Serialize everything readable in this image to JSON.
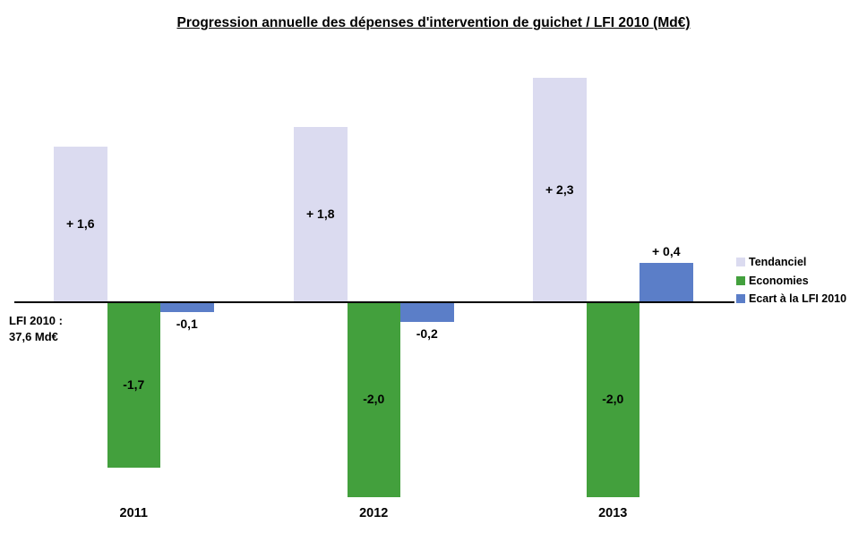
{
  "chart_data": {
    "type": "bar",
    "title": "Progression annuelle des dépenses d'intervention de guichet / LFI 2010 (Md€)",
    "unit": "Md€",
    "categories": [
      "2011",
      "2012",
      "2013"
    ],
    "series": [
      {
        "name": "Tendanciel",
        "color": "#dbdbf0",
        "values": [
          1.6,
          1.8,
          2.3
        ],
        "labels": [
          "+ 1,6",
          "+ 1,8",
          "+ 2,3"
        ]
      },
      {
        "name": "Economies",
        "color": "#43a03d",
        "values": [
          -1.7,
          -2.0,
          -2.0
        ],
        "labels": [
          "-1,7",
          "-2,0",
          "-2,0"
        ]
      },
      {
        "name": "Ecart à la LFI 2010",
        "color": "#5b7ec8",
        "values": [
          -0.1,
          -0.2,
          0.4
        ],
        "labels": [
          "-0,1",
          "-0,2",
          "+ 0,4"
        ]
      }
    ],
    "ylim": [
      -2.3,
      2.4
    ],
    "grid": false,
    "axes_visible": false,
    "legend_position": "right",
    "baseline_value": 0,
    "annotation": {
      "line1": "LFI 2010 :",
      "line2": "37,6 Md€"
    }
  },
  "colors": {
    "background": "#ffffff",
    "axis": "#000000",
    "text": "#000000"
  }
}
